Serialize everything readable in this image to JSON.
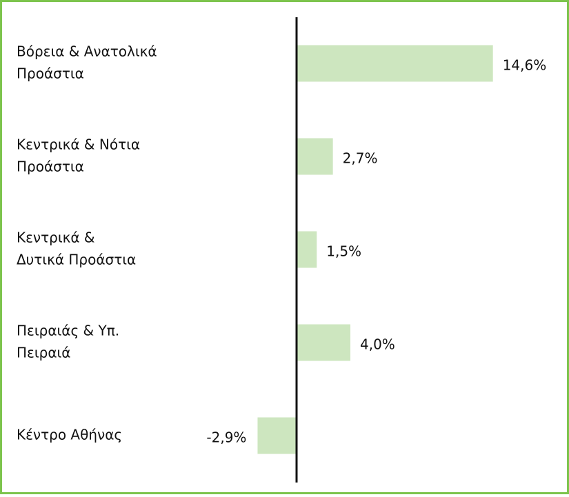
{
  "chart_data": {
    "type": "bar",
    "orientation": "horizontal",
    "categories": [
      [
        "Βόρεια & Ανατολικά",
        "Προάστια"
      ],
      [
        "Κεντρικά & Νότια",
        "Προάστια"
      ],
      [
        "Κεντρικά &",
        "Δυτικά Προάστια"
      ],
      [
        "Πειραιάς & Υπ.",
        "Πειραιά"
      ],
      [
        "Κέντρο Αθήνας"
      ]
    ],
    "values": [
      14.6,
      2.7,
      1.5,
      4.0,
      -2.9
    ],
    "value_labels": [
      "14,6%",
      "2,7%",
      "1,5%",
      "4,0%",
      "-2,9%"
    ],
    "color": "#cde6bf",
    "xlim": [
      -5,
      16
    ]
  }
}
